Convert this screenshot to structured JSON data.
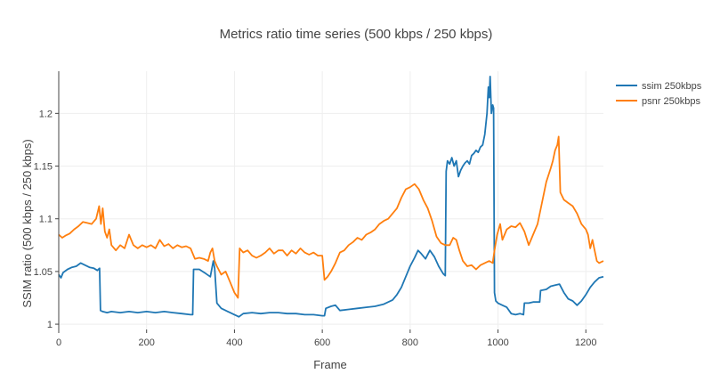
{
  "chart_data": {
    "type": "line",
    "title": "Metrics ratio time series (500 kbps / 250 kbps)",
    "xlabel": "Frame",
    "ylabel": "SSIM ratio (500 kbps / 250 kbps)",
    "xlim": [
      0,
      1240
    ],
    "ylim": [
      0.995,
      1.24
    ],
    "xticks": [
      0,
      200,
      400,
      600,
      800,
      1000,
      1200
    ],
    "xtick_labels": [
      "0",
      "200",
      "400",
      "600",
      "800",
      "1000",
      "1200"
    ],
    "yticks": [
      1.0,
      1.05,
      1.1,
      1.15,
      1.2
    ],
    "ytick_labels": [
      "1",
      "1.05",
      "1.1",
      "1.15",
      "1.2"
    ],
    "grid": true,
    "legend_position": "top-right",
    "series": [
      {
        "name": "ssim 250kbps",
        "color": "#1f77b4",
        "points": [
          [
            0,
            1.047
          ],
          [
            5,
            1.044
          ],
          [
            10,
            1.049
          ],
          [
            20,
            1.052
          ],
          [
            30,
            1.054
          ],
          [
            40,
            1.055
          ],
          [
            50,
            1.058
          ],
          [
            60,
            1.056
          ],
          [
            70,
            1.054
          ],
          [
            80,
            1.053
          ],
          [
            88,
            1.051
          ],
          [
            93,
            1.053
          ],
          [
            95,
            1.013
          ],
          [
            100,
            1.012
          ],
          [
            110,
            1.011
          ],
          [
            120,
            1.012
          ],
          [
            140,
            1.011
          ],
          [
            160,
            1.012
          ],
          [
            180,
            1.011
          ],
          [
            200,
            1.012
          ],
          [
            220,
            1.011
          ],
          [
            240,
            1.012
          ],
          [
            260,
            1.011
          ],
          [
            280,
            1.01
          ],
          [
            300,
            1.009
          ],
          [
            305,
            1.009
          ],
          [
            307,
            1.052
          ],
          [
            320,
            1.052
          ],
          [
            335,
            1.048
          ],
          [
            345,
            1.045
          ],
          [
            352,
            1.06
          ],
          [
            355,
            1.053
          ],
          [
            360,
            1.02
          ],
          [
            370,
            1.015
          ],
          [
            380,
            1.013
          ],
          [
            390,
            1.011
          ],
          [
            400,
            1.009
          ],
          [
            405,
            1.008
          ],
          [
            410,
            1.007
          ],
          [
            420,
            1.01
          ],
          [
            440,
            1.011
          ],
          [
            460,
            1.01
          ],
          [
            480,
            1.011
          ],
          [
            500,
            1.011
          ],
          [
            520,
            1.01
          ],
          [
            540,
            1.01
          ],
          [
            560,
            1.009
          ],
          [
            580,
            1.009
          ],
          [
            600,
            1.008
          ],
          [
            605,
            1.008
          ],
          [
            608,
            1.015
          ],
          [
            620,
            1.017
          ],
          [
            630,
            1.018
          ],
          [
            640,
            1.013
          ],
          [
            660,
            1.014
          ],
          [
            680,
            1.015
          ],
          [
            700,
            1.016
          ],
          [
            720,
            1.017
          ],
          [
            740,
            1.019
          ],
          [
            760,
            1.023
          ],
          [
            770,
            1.028
          ],
          [
            780,
            1.035
          ],
          [
            790,
            1.045
          ],
          [
            800,
            1.055
          ],
          [
            810,
            1.063
          ],
          [
            818,
            1.07
          ],
          [
            825,
            1.067
          ],
          [
            835,
            1.062
          ],
          [
            845,
            1.07
          ],
          [
            855,
            1.064
          ],
          [
            865,
            1.055
          ],
          [
            875,
            1.048
          ],
          [
            880,
            1.046
          ],
          [
            882,
            1.145
          ],
          [
            885,
            1.155
          ],
          [
            890,
            1.152
          ],
          [
            895,
            1.158
          ],
          [
            900,
            1.15
          ],
          [
            905,
            1.155
          ],
          [
            910,
            1.14
          ],
          [
            915,
            1.146
          ],
          [
            920,
            1.15
          ],
          [
            925,
            1.153
          ],
          [
            930,
            1.155
          ],
          [
            935,
            1.152
          ],
          [
            940,
            1.16
          ],
          [
            945,
            1.162
          ],
          [
            950,
            1.165
          ],
          [
            955,
            1.163
          ],
          [
            960,
            1.168
          ],
          [
            965,
            1.17
          ],
          [
            970,
            1.18
          ],
          [
            975,
            1.2
          ],
          [
            978,
            1.225
          ],
          [
            980,
            1.215
          ],
          [
            982,
            1.235
          ],
          [
            985,
            1.2
          ],
          [
            988,
            1.208
          ],
          [
            990,
            1.205
          ],
          [
            992,
            1.03
          ],
          [
            995,
            1.022
          ],
          [
            1000,
            1.02
          ],
          [
            1010,
            1.018
          ],
          [
            1020,
            1.016
          ],
          [
            1030,
            1.01
          ],
          [
            1040,
            1.009
          ],
          [
            1050,
            1.01
          ],
          [
            1058,
            1.009
          ],
          [
            1060,
            1.02
          ],
          [
            1070,
            1.02
          ],
          [
            1080,
            1.021
          ],
          [
            1090,
            1.021
          ],
          [
            1095,
            1.021
          ],
          [
            1097,
            1.032
          ],
          [
            1110,
            1.033
          ],
          [
            1120,
            1.036
          ],
          [
            1130,
            1.037
          ],
          [
            1140,
            1.038
          ],
          [
            1150,
            1.03
          ],
          [
            1160,
            1.024
          ],
          [
            1170,
            1.022
          ],
          [
            1180,
            1.018
          ],
          [
            1190,
            1.022
          ],
          [
            1200,
            1.028
          ],
          [
            1210,
            1.035
          ],
          [
            1220,
            1.04
          ],
          [
            1230,
            1.044
          ],
          [
            1240,
            1.045
          ]
        ]
      },
      {
        "name": "psnr 250kbps",
        "color": "#ff7f0e",
        "points": [
          [
            0,
            1.085
          ],
          [
            8,
            1.082
          ],
          [
            15,
            1.084
          ],
          [
            25,
            1.086
          ],
          [
            35,
            1.09
          ],
          [
            45,
            1.093
          ],
          [
            55,
            1.097
          ],
          [
            65,
            1.096
          ],
          [
            75,
            1.095
          ],
          [
            85,
            1.1
          ],
          [
            92,
            1.112
          ],
          [
            96,
            1.095
          ],
          [
            100,
            1.11
          ],
          [
            105,
            1.088
          ],
          [
            110,
            1.082
          ],
          [
            115,
            1.09
          ],
          [
            120,
            1.075
          ],
          [
            130,
            1.07
          ],
          [
            140,
            1.075
          ],
          [
            150,
            1.072
          ],
          [
            160,
            1.085
          ],
          [
            170,
            1.075
          ],
          [
            180,
            1.072
          ],
          [
            190,
            1.075
          ],
          [
            200,
            1.073
          ],
          [
            210,
            1.075
          ],
          [
            220,
            1.072
          ],
          [
            230,
            1.08
          ],
          [
            240,
            1.074
          ],
          [
            250,
            1.076
          ],
          [
            260,
            1.072
          ],
          [
            270,
            1.075
          ],
          [
            280,
            1.073
          ],
          [
            290,
            1.074
          ],
          [
            300,
            1.072
          ],
          [
            310,
            1.062
          ],
          [
            320,
            1.063
          ],
          [
            330,
            1.062
          ],
          [
            340,
            1.06
          ],
          [
            345,
            1.068
          ],
          [
            350,
            1.072
          ],
          [
            355,
            1.06
          ],
          [
            360,
            1.055
          ],
          [
            370,
            1.047
          ],
          [
            380,
            1.05
          ],
          [
            390,
            1.04
          ],
          [
            400,
            1.03
          ],
          [
            408,
            1.025
          ],
          [
            412,
            1.072
          ],
          [
            420,
            1.068
          ],
          [
            430,
            1.07
          ],
          [
            440,
            1.065
          ],
          [
            450,
            1.063
          ],
          [
            460,
            1.065
          ],
          [
            470,
            1.068
          ],
          [
            480,
            1.072
          ],
          [
            490,
            1.067
          ],
          [
            500,
            1.07
          ],
          [
            510,
            1.07
          ],
          [
            520,
            1.065
          ],
          [
            530,
            1.07
          ],
          [
            540,
            1.067
          ],
          [
            550,
            1.072
          ],
          [
            560,
            1.068
          ],
          [
            570,
            1.066
          ],
          [
            580,
            1.068
          ],
          [
            590,
            1.065
          ],
          [
            600,
            1.065
          ],
          [
            605,
            1.042
          ],
          [
            612,
            1.045
          ],
          [
            620,
            1.05
          ],
          [
            630,
            1.058
          ],
          [
            640,
            1.068
          ],
          [
            650,
            1.07
          ],
          [
            660,
            1.075
          ],
          [
            670,
            1.078
          ],
          [
            680,
            1.082
          ],
          [
            690,
            1.08
          ],
          [
            700,
            1.085
          ],
          [
            710,
            1.087
          ],
          [
            720,
            1.09
          ],
          [
            730,
            1.095
          ],
          [
            740,
            1.098
          ],
          [
            750,
            1.1
          ],
          [
            760,
            1.105
          ],
          [
            770,
            1.11
          ],
          [
            780,
            1.12
          ],
          [
            790,
            1.128
          ],
          [
            800,
            1.13
          ],
          [
            810,
            1.133
          ],
          [
            820,
            1.128
          ],
          [
            830,
            1.118
          ],
          [
            840,
            1.11
          ],
          [
            850,
            1.098
          ],
          [
            860,
            1.083
          ],
          [
            870,
            1.077
          ],
          [
            880,
            1.075
          ],
          [
            890,
            1.075
          ],
          [
            898,
            1.082
          ],
          [
            905,
            1.08
          ],
          [
            912,
            1.07
          ],
          [
            920,
            1.06
          ],
          [
            930,
            1.055
          ],
          [
            940,
            1.056
          ],
          [
            950,
            1.052
          ],
          [
            960,
            1.056
          ],
          [
            970,
            1.058
          ],
          [
            980,
            1.06
          ],
          [
            988,
            1.058
          ],
          [
            992,
            1.07
          ],
          [
            998,
            1.085
          ],
          [
            1005,
            1.095
          ],
          [
            1010,
            1.08
          ],
          [
            1020,
            1.09
          ],
          [
            1030,
            1.093
          ],
          [
            1040,
            1.092
          ],
          [
            1050,
            1.096
          ],
          [
            1060,
            1.088
          ],
          [
            1070,
            1.075
          ],
          [
            1080,
            1.085
          ],
          [
            1090,
            1.095
          ],
          [
            1100,
            1.115
          ],
          [
            1110,
            1.135
          ],
          [
            1120,
            1.148
          ],
          [
            1125,
            1.155
          ],
          [
            1130,
            1.165
          ],
          [
            1135,
            1.17
          ],
          [
            1138,
            1.178
          ],
          [
            1142,
            1.125
          ],
          [
            1150,
            1.118
          ],
          [
            1160,
            1.115
          ],
          [
            1170,
            1.112
          ],
          [
            1180,
            1.105
          ],
          [
            1190,
            1.095
          ],
          [
            1200,
            1.09
          ],
          [
            1205,
            1.085
          ],
          [
            1210,
            1.072
          ],
          [
            1215,
            1.08
          ],
          [
            1220,
            1.07
          ],
          [
            1225,
            1.06
          ],
          [
            1230,
            1.058
          ],
          [
            1240,
            1.06
          ]
        ]
      }
    ]
  }
}
